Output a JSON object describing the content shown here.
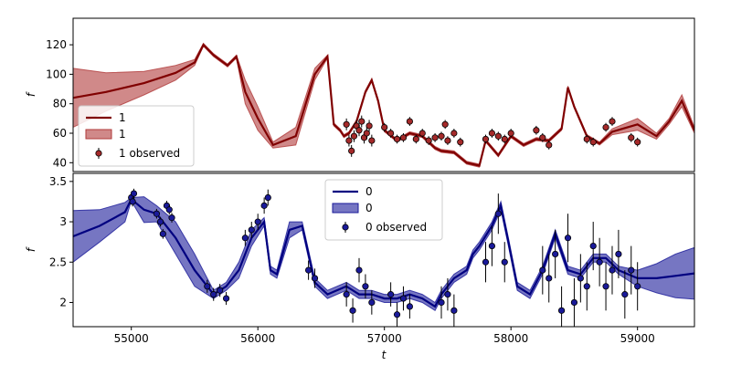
{
  "chart_data": [
    {
      "type": "line",
      "panel": "top",
      "ylabel": "f",
      "xlim": [
        54540,
        59450
      ],
      "ylim": [
        34,
        138
      ],
      "yticks": [
        40,
        60,
        80,
        100,
        120
      ],
      "colors": {
        "line": "#800000",
        "band": "#b03a3a",
        "points": "#a52a2a"
      },
      "legend": {
        "placement": "lower-left",
        "line_label": "1",
        "band_label": "1",
        "points_label": "1 observed"
      },
      "model": {
        "x": [
          54540,
          54800,
          55100,
          55350,
          55500,
          55570,
          55650,
          55760,
          55830,
          55900,
          56000,
          56120,
          56300,
          56450,
          56550,
          56600,
          56650,
          56680,
          56720,
          56780,
          56850,
          56900,
          56950,
          57000,
          57100,
          57200,
          57300,
          57400,
          57450,
          57550,
          57650,
          57750,
          57800,
          57900,
          58000,
          58100,
          58200,
          58300,
          58400,
          58450,
          58500,
          58600,
          58700,
          58800,
          59000,
          59150,
          59250,
          59350,
          59450
        ],
        "mean": [
          84,
          88,
          94,
          101,
          108,
          120,
          113,
          106,
          112,
          88,
          70,
          52,
          58,
          100,
          112,
          66,
          62,
          58,
          60,
          68,
          88,
          96,
          82,
          62,
          55,
          60,
          58,
          50,
          48,
          47,
          40,
          38,
          55,
          45,
          58,
          52,
          56,
          55,
          63,
          91,
          78,
          58,
          53,
          61,
          66,
          58,
          68,
          82,
          62
        ],
        "lower": [
          64,
          75,
          86,
          96,
          106,
          119,
          112,
          105,
          111,
          80,
          62,
          50,
          52,
          96,
          111,
          65,
          61,
          57,
          59,
          67,
          87,
          95,
          81,
          61,
          54,
          59,
          57,
          49,
          47,
          46,
          39,
          37,
          54,
          44,
          57,
          51,
          55,
          54,
          62,
          90,
          77,
          57,
          52,
          59,
          62,
          56,
          66,
          78,
          60
        ],
        "upper": [
          104,
          101,
          102,
          106,
          110,
          121,
          114,
          107,
          113,
          96,
          78,
          54,
          64,
          104,
          113,
          67,
          63,
          59,
          61,
          69,
          89,
          97,
          83,
          63,
          56,
          61,
          59,
          51,
          49,
          48,
          41,
          39,
          56,
          46,
          59,
          53,
          57,
          56,
          64,
          92,
          79,
          59,
          54,
          63,
          70,
          60,
          70,
          86,
          64
        ]
      },
      "observed": {
        "x": [
          56700,
          56720,
          56740,
          56760,
          56780,
          56800,
          56820,
          56840,
          56860,
          56880,
          56900,
          57000,
          57050,
          57100,
          57150,
          57200,
          57250,
          57300,
          57350,
          57400,
          57450,
          57480,
          57500,
          57550,
          57600,
          57800,
          57850,
          57900,
          57950,
          58000,
          58200,
          58250,
          58300,
          58600,
          58650,
          58750,
          58800,
          58950,
          59000
        ],
        "y": [
          66,
          55,
          48,
          58,
          65,
          62,
          68,
          57,
          60,
          65,
          55,
          64,
          60,
          56,
          57,
          68,
          56,
          60,
          55,
          57,
          58,
          66,
          55,
          60,
          54,
          56,
          60,
          58,
          56,
          60,
          62,
          57,
          52,
          56,
          54,
          64,
          68,
          57,
          54
        ],
        "err": [
          4,
          4,
          4,
          4,
          4,
          4,
          4,
          4,
          4,
          4,
          4,
          3,
          3,
          3,
          3,
          3,
          3,
          3,
          3,
          3,
          3,
          3,
          3,
          3,
          3,
          3,
          3,
          3,
          3,
          3,
          3,
          3,
          3,
          3,
          3,
          3,
          3,
          3,
          3
        ]
      }
    },
    {
      "type": "line",
      "panel": "bottom",
      "ylabel": "f",
      "xlabel": "t",
      "xlim": [
        54540,
        59450
      ],
      "ylim": [
        1.7,
        3.6
      ],
      "xticks": [
        55000,
        56000,
        57000,
        58000,
        59000
      ],
      "yticks": [
        2.0,
        2.5,
        3.0,
        3.5
      ],
      "colors": {
        "line": "#000080",
        "band": "#1a1a99",
        "points": "#1a1a99"
      },
      "legend": {
        "placement": "upper-center",
        "line_label": "0",
        "band_label": "0",
        "points_label": "0 observed"
      },
      "model": {
        "x": [
          54540,
          54750,
          54950,
          55000,
          55100,
          55200,
          55350,
          55500,
          55650,
          55750,
          55850,
          55950,
          56050,
          56100,
          56150,
          56250,
          56350,
          56450,
          56550,
          56700,
          56800,
          56900,
          57000,
          57100,
          57200,
          57300,
          57400,
          57450,
          57550,
          57650,
          57700,
          57750,
          57850,
          57920,
          57980,
          58050,
          58150,
          58250,
          58350,
          58450,
          58550,
          58650,
          58750,
          58850,
          59000,
          59150,
          59300,
          59450
        ],
        "mean": [
          2.82,
          2.95,
          3.12,
          3.28,
          3.15,
          3.1,
          2.8,
          2.4,
          2.1,
          2.2,
          2.4,
          2.8,
          3.0,
          2.4,
          2.35,
          2.9,
          2.95,
          2.25,
          2.1,
          2.2,
          2.1,
          2.1,
          2.05,
          2.05,
          2.1,
          2.05,
          1.95,
          2.1,
          2.3,
          2.4,
          2.6,
          2.7,
          2.95,
          3.2,
          2.75,
          2.2,
          2.1,
          2.4,
          2.85,
          2.4,
          2.35,
          2.55,
          2.55,
          2.4,
          2.3,
          2.3,
          2.33,
          2.36
        ],
        "lower": [
          2.5,
          2.75,
          3.0,
          3.26,
          2.99,
          3.0,
          2.6,
          2.2,
          2.05,
          2.15,
          2.3,
          2.7,
          2.95,
          2.35,
          2.3,
          2.8,
          2.9,
          2.2,
          2.05,
          2.15,
          2.05,
          2.05,
          2.0,
          2.0,
          2.05,
          2.0,
          1.9,
          2.05,
          2.25,
          2.35,
          2.55,
          2.65,
          2.9,
          3.15,
          2.7,
          2.15,
          2.05,
          2.35,
          2.8,
          2.35,
          2.3,
          2.5,
          2.5,
          2.35,
          2.2,
          2.12,
          2.06,
          2.04
        ],
        "upper": [
          3.14,
          3.15,
          3.24,
          3.3,
          3.31,
          3.2,
          3.0,
          2.6,
          2.15,
          2.25,
          2.5,
          2.9,
          3.05,
          2.45,
          2.4,
          3.0,
          3.0,
          2.3,
          2.15,
          2.25,
          2.15,
          2.15,
          2.1,
          2.1,
          2.15,
          2.1,
          2.0,
          2.15,
          2.35,
          2.45,
          2.65,
          2.75,
          3.0,
          3.25,
          2.8,
          2.25,
          2.15,
          2.45,
          2.9,
          2.45,
          2.4,
          2.6,
          2.6,
          2.45,
          2.4,
          2.48,
          2.6,
          2.68
        ]
      },
      "observed": {
        "x": [
          55000,
          55010,
          55020,
          55200,
          55230,
          55250,
          55280,
          55300,
          55320,
          55600,
          55650,
          55700,
          55750,
          55900,
          55950,
          56000,
          56050,
          56080,
          56400,
          56450,
          56700,
          56750,
          56800,
          56850,
          56900,
          57050,
          57100,
          57150,
          57200,
          57450,
          57500,
          57550,
          57800,
          57850,
          57900,
          57950,
          58250,
          58300,
          58350,
          58400,
          58450,
          58500,
          58550,
          58600,
          58650,
          58700,
          58750,
          58800,
          58850,
          58900,
          58950,
          59000
        ],
        "y": [
          3.3,
          3.25,
          3.35,
          3.1,
          3.0,
          2.85,
          3.2,
          3.15,
          3.05,
          2.2,
          2.1,
          2.15,
          2.05,
          2.8,
          2.9,
          3.0,
          3.2,
          3.3,
          2.4,
          2.3,
          2.1,
          1.9,
          2.4,
          2.2,
          2.0,
          2.1,
          1.85,
          2.05,
          1.95,
          2.0,
          2.1,
          1.9,
          2.5,
          2.7,
          3.1,
          2.5,
          2.4,
          2.3,
          2.6,
          1.9,
          2.8,
          2.0,
          2.3,
          2.2,
          2.7,
          2.5,
          2.2,
          2.4,
          2.6,
          2.1,
          2.4,
          2.2
        ],
        "err": [
          0.06,
          0.06,
          0.06,
          0.06,
          0.06,
          0.06,
          0.06,
          0.06,
          0.06,
          0.08,
          0.08,
          0.08,
          0.08,
          0.1,
          0.1,
          0.1,
          0.1,
          0.1,
          0.12,
          0.12,
          0.15,
          0.15,
          0.15,
          0.15,
          0.15,
          0.15,
          0.15,
          0.15,
          0.15,
          0.2,
          0.2,
          0.2,
          0.25,
          0.25,
          0.25,
          0.25,
          0.3,
          0.3,
          0.3,
          0.3,
          0.3,
          0.3,
          0.3,
          0.3,
          0.3,
          0.3,
          0.3,
          0.3,
          0.3,
          0.3,
          0.3,
          0.3
        ]
      }
    }
  ]
}
